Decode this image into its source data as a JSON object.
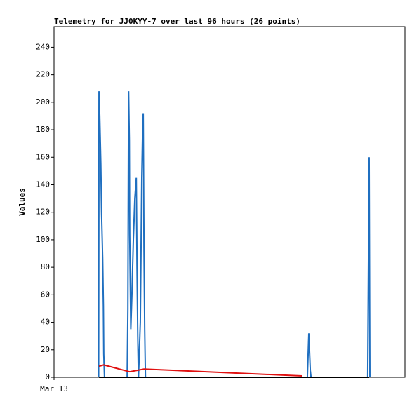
{
  "chart_data": {
    "type": "line",
    "title": "Telemetry for JJ0KYY-7 over last 96 hours (26 points)",
    "y_label": "Values",
    "xlim": [
      0,
      96
    ],
    "xticks": [
      {
        "value": 0,
        "label": "Mar 13"
      }
    ],
    "ylim": [
      0,
      255
    ],
    "yticks": [
      0,
      20,
      40,
      60,
      80,
      100,
      120,
      140,
      160,
      180,
      200,
      220,
      240
    ],
    "series": [
      {
        "color": "#1f6fc0",
        "x": [
          12.2,
          12.3,
          12.5,
          12.8,
          13.0,
          13.3,
          13.5,
          13.6,
          13.8,
          20.0,
          20.2,
          20.4,
          20.6,
          20.7,
          21.0,
          21.3,
          21.7,
          22.1,
          22.5,
          22.7,
          22.9,
          23.1,
          23.6,
          24.0,
          24.2,
          24.4,
          24.6,
          24.8,
          25.0,
          69.3,
          69.7,
          70.1,
          70.3,
          85.8,
          86.0,
          86.2,
          86.4
        ],
        "values": [
          0,
          208,
          190,
          155,
          120,
          87,
          52,
          17,
          0,
          0,
          50,
          208,
          172,
          104,
          35,
          60,
          100,
          130,
          145,
          80,
          30,
          0,
          40,
          145,
          175,
          192,
          95,
          35,
          0,
          0,
          32,
          5,
          0,
          0,
          80,
          160,
          0
        ]
      },
      {
        "color": "#e01010",
        "x": [
          12.3,
          13.6,
          20.7,
          24.6,
          67.8
        ],
        "values": [
          8,
          9,
          4,
          6,
          1
        ]
      },
      {
        "color": "#000000",
        "x": [
          12.3,
          86.2
        ],
        "values": [
          0,
          0
        ]
      }
    ]
  }
}
